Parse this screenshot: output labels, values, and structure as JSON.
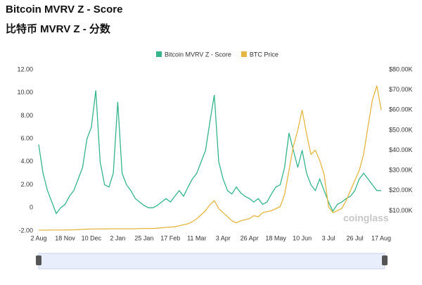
{
  "chart_data": {
    "type": "line",
    "title": "Bitcoin MVRV Z - Score",
    "subtitle": "比特币 MVRV Z - 分数",
    "watermark": "coinglass",
    "categories": [
      "2 Aug",
      null,
      null,
      null,
      null,
      null,
      "18 Nov",
      null,
      null,
      null,
      null,
      null,
      "10 Dec",
      null,
      null,
      null,
      null,
      null,
      "2 Jan",
      null,
      null,
      null,
      null,
      null,
      "25 Jan",
      null,
      null,
      null,
      null,
      null,
      "17 Feb",
      null,
      null,
      null,
      null,
      null,
      "11 Mar",
      null,
      null,
      null,
      null,
      null,
      "3 Apr",
      null,
      null,
      null,
      null,
      null,
      "26 Apr",
      null,
      null,
      null,
      null,
      null,
      "18 May",
      null,
      null,
      null,
      null,
      null,
      "10 Jun",
      null,
      null,
      null,
      null,
      null,
      "3 Jul",
      null,
      null,
      null,
      null,
      null,
      "26 Jul",
      null,
      null,
      null,
      null,
      null,
      "17 Aug"
    ],
    "series": [
      {
        "name": "Bitcoin MVRV Z - Score",
        "color": "#34b58a",
        "values": [
          5.5,
          3,
          1.5,
          0.5,
          -0.5,
          0,
          0.3,
          1,
          1.5,
          2.5,
          3.5,
          6,
          7,
          10.2,
          4,
          2,
          1.8,
          3,
          9.2,
          3,
          2,
          1.5,
          0.8,
          0.5,
          0.2,
          0,
          0,
          0.2,
          0.5,
          0.8,
          0.5,
          1,
          1.5,
          1,
          1.8,
          2.5,
          3,
          4,
          5,
          7.5,
          9.8,
          4,
          2.5,
          1.5,
          1.2,
          1.8,
          1.3,
          1,
          0.8,
          0.5,
          0.8,
          0.3,
          0.5,
          1.2,
          1.8,
          2,
          3.5,
          6.5,
          5,
          3.5,
          5,
          3,
          2,
          1.5,
          2.5,
          1.5,
          0.5,
          -0.3,
          0.3,
          0.5,
          0.8,
          1,
          1.5,
          2.5,
          3,
          2.5,
          2,
          1.5,
          1.5
        ]
      },
      {
        "name": "BTC Price",
        "color": "#e5b641",
        "axis": "y2",
        "values": [
          300,
          300,
          350,
          400,
          400,
          400,
          400,
          450,
          500,
          600,
          700,
          800,
          900,
          900,
          900,
          950,
          1000,
          1000,
          1000,
          1000,
          1000,
          1000,
          1000,
          1100,
          1200,
          1200,
          1200,
          1300,
          1500,
          1700,
          1800,
          2000,
          2500,
          3000,
          3500,
          4500,
          6000,
          8000,
          10000,
          13000,
          15000,
          11000,
          9000,
          7000,
          5000,
          4000,
          5000,
          5500,
          6000,
          7500,
          7000,
          9000,
          9500,
          10000,
          11000,
          12000,
          18000,
          30000,
          42000,
          50000,
          60000,
          48000,
          38000,
          40000,
          35000,
          28000,
          12000,
          9000,
          10000,
          11000,
          15000,
          20000,
          25000,
          30000,
          38000,
          52000,
          65000,
          72000,
          60000
        ]
      }
    ],
    "ylim": [
      -2,
      12
    ],
    "yticks": [
      {
        "value": -2,
        "label": "-2.00"
      },
      0,
      {
        "value": 2,
        "label": "2.00"
      },
      {
        "value": 4,
        "label": "4.00"
      },
      {
        "value": 6,
        "label": "6.00"
      },
      {
        "value": 8,
        "label": "8.00"
      },
      {
        "value": 10,
        "label": "10.00"
      },
      {
        "value": 12,
        "label": "12.00"
      }
    ],
    "y2lim": [
      0,
      80000
    ],
    "y2ticks": [
      {
        "value": 10000,
        "label": "$10.00K"
      },
      {
        "value": 20000,
        "label": "$20.00K"
      },
      {
        "value": 30000,
        "label": "$30.00K"
      },
      {
        "value": 40000,
        "label": "$40.00K"
      },
      {
        "value": 50000,
        "label": "$50.00K"
      },
      {
        "value": 60000,
        "label": "$60.00K"
      },
      {
        "value": 70000,
        "label": "$70.00K"
      },
      {
        "value": 80000,
        "label": "$80.00K"
      }
    ],
    "legend": "top",
    "grid": false
  }
}
